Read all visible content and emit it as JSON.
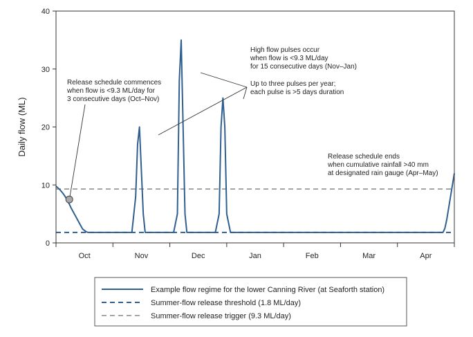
{
  "chart_data": {
    "type": "line",
    "xlabel": "",
    "ylabel": "Daily flow (ML)",
    "ylim": [
      0,
      40
    ],
    "yticks": [
      "0",
      "10",
      "20",
      "30",
      "40"
    ],
    "months": [
      "Oct",
      "Nov",
      "Dec",
      "Jan",
      "Feb",
      "Mar",
      "Apr"
    ],
    "xlim": [
      0,
      210
    ],
    "grid": false,
    "legend_position": "bottom",
    "series": [
      {
        "name": "Example flow regime for the lower Canning River (at Seaforth station)",
        "style": "solid",
        "color": "#2f5f8f",
        "x": [
          0,
          1,
          2,
          3,
          4,
          5,
          6,
          7,
          8,
          10,
          12,
          14,
          16,
          17,
          18,
          19,
          40,
          42,
          43,
          44,
          46,
          47,
          48,
          50,
          62,
          64,
          65,
          66,
          68,
          69,
          70,
          72,
          84,
          86,
          87,
          88,
          89,
          90,
          92,
          204,
          205,
          206,
          207,
          208,
          209,
          210
        ],
        "y": [
          9.8,
          9.5,
          9.2,
          8.8,
          8.4,
          7.9,
          7.3,
          6.7,
          6.0,
          4.8,
          3.6,
          2.4,
          1.9,
          1.8,
          1.8,
          1.8,
          1.8,
          8.0,
          17.0,
          20.0,
          5.0,
          1.8,
          1.8,
          1.8,
          1.8,
          5.0,
          28.0,
          35.0,
          5.0,
          1.8,
          1.8,
          1.8,
          1.8,
          5.0,
          20.0,
          25.0,
          20.0,
          5.0,
          1.8,
          1.8,
          2.5,
          4.0,
          6.0,
          8.0,
          10.0,
          12.0
        ]
      },
      {
        "name": "Summer-flow release threshold (1.8 ML/day)",
        "style": "dashed",
        "color": "#2f5f8f",
        "value": 1.8
      },
      {
        "name": "Summer-flow release trigger (9.3 ML/day)",
        "style": "dashed",
        "color": "#888888",
        "value": 9.3
      }
    ],
    "marker": {
      "x": 7,
      "y": 7.5,
      "color": "#aaaaaa"
    },
    "annotations": [
      {
        "id": "commence",
        "lines": [
          "Release schedule commences",
          "when flow is <9.3 ML/day for",
          "3 consecutive days (Oct–Nov)"
        ]
      },
      {
        "id": "pulses",
        "lines": [
          "High flow pulses occur",
          "when flow is <9.3 ML/day",
          "for 15 consecutive days (Nov–Jan)"
        ]
      },
      {
        "id": "three",
        "lines": [
          "Up to three pulses per year;",
          "each pulse is >5 days duration"
        ]
      },
      {
        "id": "ends",
        "lines": [
          "Release schedule ends",
          "when cumulative rainfall >40 mm",
          "at designated rain gauge (Apr–May)"
        ]
      }
    ]
  }
}
